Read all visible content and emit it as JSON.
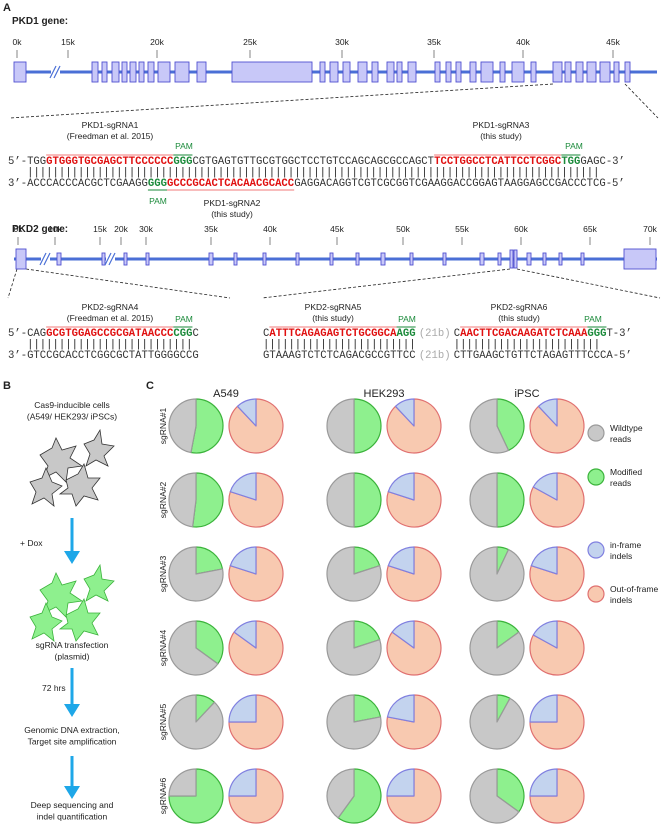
{
  "panel_labels": [
    "A",
    "B",
    "C"
  ],
  "pkd1": {
    "title": "PKD1 gene:",
    "axis_ticks": [
      "0k",
      "15k",
      "20k",
      "25k",
      "30k",
      "35k",
      "40k",
      "45k"
    ],
    "block": {
      "top": [
        {
          "text": "5’-TGG",
          "style": "plain"
        },
        {
          "text": "GTGGGTGCGAGCTTCCCCCC",
          "style": "sgrna"
        },
        {
          "text": "GGG",
          "style": "pam"
        },
        {
          "text": "CGTGAGTGTTGCGTGGCTCCTGTCCAGCAGCGCCAGCT",
          "style": "plain"
        },
        {
          "text": "TCCTGGCCTCATTCCTCGGC",
          "style": "sgrna"
        },
        {
          "text": "TGG",
          "style": "pam"
        },
        {
          "text": "GAGC-3’",
          "style": "plain"
        }
      ],
      "bars": [
        "||||||||||||||||||||||||||||||||||||||||||||||||||||||||||||||||||||||||||||||||||||||||||"
      ],
      "bottom": [
        {
          "text": "3’-ACCCACCCACGCTCGAAGG",
          "style": "plain"
        },
        {
          "text": "GGG",
          "style": "pam"
        },
        {
          "text": "GCCCGCACTCACAACGCACC",
          "style": "sgrna"
        },
        {
          "text": "GAGGACAGGTCGTCGCGGTCGAAGGACCGGAGTAAGGAGCCGACCCTCG-5’",
          "style": "plain"
        }
      ]
    },
    "sgrna1": [
      "PKD1-sgRNA1",
      "(Freedman et al. 2015)"
    ],
    "sgrna3": [
      "PKD1-sgRNA3",
      "(this study)"
    ],
    "sgrna2": [
      "PKD1-sgRNA2",
      "(this study)"
    ],
    "pam": "PAM"
  },
  "pkd2": {
    "title": "PKD2 gene:",
    "axis_ticks": [
      "0k",
      "10k",
      "15k",
      "20k",
      "30k",
      "35k",
      "40k",
      "45k",
      "50k",
      "55k",
      "60k",
      "65k",
      "70k"
    ],
    "left": {
      "top": [
        {
          "text": "5’-CAG",
          "style": "plain"
        },
        {
          "text": "GCGTGGAGCCGCGATAACCC",
          "style": "sgrna"
        },
        {
          "text": "CGG",
          "style": "pam"
        },
        {
          "text": "C",
          "style": "plain"
        }
      ],
      "bars": [
        "||||||||||||||||||||||||||"
      ],
      "bottom": [
        {
          "text": "3’-GTCCGCACCTCGGCGCTATTGGGGCCG",
          "style": "plain"
        }
      ]
    },
    "right": {
      "top": [
        {
          "text": "C",
          "style": "plain"
        },
        {
          "text": "ATTTCAGAGAGTCTGCGGCA",
          "style": "sgrna"
        },
        {
          "text": "AGG",
          "style": "pam"
        },
        {
          "text": "(21b)",
          "style": "gap"
        },
        {
          "text": "C",
          "style": "plain"
        },
        {
          "text": "AACTTCGACAAGATCTCAAA",
          "style": "sgrna"
        },
        {
          "text": "GGG",
          "style": "pam"
        },
        {
          "text": "T-3’",
          "style": "plain"
        }
      ],
      "bars": [
        "||||||||||||||||||||||||",
        "|||||||||||||||||||||||"
      ],
      "bottom": [
        {
          "text": "GTAAAGTCTCTCAGACGCCGTTCC",
          "style": "plain"
        },
        {
          "text": "(21b)",
          "style": "gap"
        },
        {
          "text": "CTTGAAGCTGTTCTAGAGTTTCCCA-5’",
          "style": "plain"
        }
      ]
    },
    "sgrna4": [
      "PKD2-sgRNA4",
      "(Freedman et al. 2015)"
    ],
    "sgrna5": [
      "PKD2-sgRNA5",
      "(this study)"
    ],
    "sgrna6": [
      "PKD2-sgRNA6",
      "(this study)"
    ],
    "pam": "PAM"
  },
  "panel_b": {
    "steps": [
      [
        "Cas9-inducible cells",
        "(A549/ HEK293/ iPSCs)"
      ],
      [
        "sgRNA transfection",
        "(plasmid)"
      ],
      [
        "Genomic DNA extraction,",
        "Target site amplification"
      ],
      [
        "Deep sequencing and",
        "indel quantification"
      ]
    ],
    "arrow_labels": [
      "+ Dox",
      "72 hrs"
    ]
  },
  "panel_c": {
    "columns": [
      "A549",
      "HEK293",
      "iPSC"
    ],
    "rows": [
      "sgRNA#1",
      "sgRNA#2",
      "sgRNA#3",
      "sgRNA#4",
      "sgRNA#5",
      "sgRNA#6"
    ],
    "legend": [
      {
        "name": [
          "Wildtype",
          "reads"
        ]
      },
      {
        "name": [
          "Modified",
          "reads"
        ]
      },
      {
        "name": [
          "in-frame",
          "indels"
        ]
      },
      {
        "name": [
          "Out-of-frame",
          "indels"
        ]
      }
    ]
  },
  "chart_data": [
    {
      "type": "pie",
      "values": [
        47,
        53
      ],
      "colors": [
        "#c8c8c8",
        "#8ef08e"
      ]
    },
    {
      "type": "pie",
      "values": [
        12,
        88
      ],
      "colors": [
        "#c3d3ee",
        "#f8c9b0"
      ]
    },
    {
      "type": "pie",
      "values": [
        50,
        50
      ],
      "colors": [
        "#c8c8c8",
        "#8ef08e"
      ]
    },
    {
      "type": "pie",
      "values": [
        12,
        88
      ],
      "colors": [
        "#c3d3ee",
        "#f8c9b0"
      ]
    },
    {
      "type": "pie",
      "values": [
        57,
        43
      ],
      "colors": [
        "#c8c8c8",
        "#8ef08e"
      ]
    },
    {
      "type": "pie",
      "values": [
        12,
        88
      ],
      "colors": [
        "#c3d3ee",
        "#f8c9b0"
      ]
    },
    {
      "type": "pie",
      "values": [
        48,
        52
      ],
      "colors": [
        "#c8c8c8",
        "#8ef08e"
      ]
    },
    {
      "type": "pie",
      "values": [
        20,
        80
      ],
      "colors": [
        "#c3d3ee",
        "#f8c9b0"
      ]
    },
    {
      "type": "pie",
      "values": [
        50,
        50
      ],
      "colors": [
        "#c8c8c8",
        "#8ef08e"
      ]
    },
    {
      "type": "pie",
      "values": [
        20,
        80
      ],
      "colors": [
        "#c3d3ee",
        "#f8c9b0"
      ]
    },
    {
      "type": "pie",
      "values": [
        50,
        50
      ],
      "colors": [
        "#c8c8c8",
        "#8ef08e"
      ]
    },
    {
      "type": "pie",
      "values": [
        17,
        83
      ],
      "colors": [
        "#c3d3ee",
        "#f8c9b0"
      ]
    },
    {
      "type": "pie",
      "values": [
        78,
        22
      ],
      "colors": [
        "#c8c8c8",
        "#8ef08e"
      ]
    },
    {
      "type": "pie",
      "values": [
        20,
        80
      ],
      "colors": [
        "#c3d3ee",
        "#f8c9b0"
      ]
    },
    {
      "type": "pie",
      "values": [
        80,
        20
      ],
      "colors": [
        "#c8c8c8",
        "#8ef08e"
      ]
    },
    {
      "type": "pie",
      "values": [
        20,
        80
      ],
      "colors": [
        "#c3d3ee",
        "#f8c9b0"
      ]
    },
    {
      "type": "pie",
      "values": [
        93,
        7
      ],
      "colors": [
        "#c8c8c8",
        "#8ef08e"
      ]
    },
    {
      "type": "pie",
      "values": [
        20,
        80
      ],
      "colors": [
        "#c3d3ee",
        "#f8c9b0"
      ]
    },
    {
      "type": "pie",
      "values": [
        65,
        35
      ],
      "colors": [
        "#c8c8c8",
        "#8ef08e"
      ]
    },
    {
      "type": "pie",
      "values": [
        15,
        85
      ],
      "colors": [
        "#c3d3ee",
        "#f8c9b0"
      ]
    },
    {
      "type": "pie",
      "values": [
        80,
        20
      ],
      "colors": [
        "#c8c8c8",
        "#8ef08e"
      ]
    },
    {
      "type": "pie",
      "values": [
        15,
        85
      ],
      "colors": [
        "#c3d3ee",
        "#f8c9b0"
      ]
    },
    {
      "type": "pie",
      "values": [
        85,
        15
      ],
      "colors": [
        "#c8c8c8",
        "#8ef08e"
      ]
    },
    {
      "type": "pie",
      "values": [
        17,
        83
      ],
      "colors": [
        "#c3d3ee",
        "#f8c9b0"
      ]
    },
    {
      "type": "pie",
      "values": [
        88,
        12
      ],
      "colors": [
        "#c8c8c8",
        "#8ef08e"
      ]
    },
    {
      "type": "pie",
      "values": [
        25,
        75
      ],
      "colors": [
        "#c3d3ee",
        "#f8c9b0"
      ]
    },
    {
      "type": "pie",
      "values": [
        78,
        22
      ],
      "colors": [
        "#c8c8c8",
        "#8ef08e"
      ]
    },
    {
      "type": "pie",
      "values": [
        22,
        78
      ],
      "colors": [
        "#c3d3ee",
        "#f8c9b0"
      ]
    },
    {
      "type": "pie",
      "values": [
        92,
        8
      ],
      "colors": [
        "#c8c8c8",
        "#8ef08e"
      ]
    },
    {
      "type": "pie",
      "values": [
        25,
        75
      ],
      "colors": [
        "#c3d3ee",
        "#f8c9b0"
      ]
    },
    {
      "type": "pie",
      "values": [
        25,
        75
      ],
      "colors": [
        "#c8c8c8",
        "#8ef08e"
      ]
    },
    {
      "type": "pie",
      "values": [
        25,
        75
      ],
      "colors": [
        "#c3d3ee",
        "#f8c9b0"
      ]
    },
    {
      "type": "pie",
      "values": [
        40,
        60
      ],
      "colors": [
        "#c8c8c8",
        "#8ef08e"
      ]
    },
    {
      "type": "pie",
      "values": [
        25,
        75
      ],
      "colors": [
        "#c3d3ee",
        "#f8c9b0"
      ]
    },
    {
      "type": "pie",
      "values": [
        65,
        35
      ],
      "colors": [
        "#c8c8c8",
        "#8ef08e"
      ]
    },
    {
      "type": "pie",
      "values": [
        25,
        75
      ],
      "colors": [
        "#c3d3ee",
        "#f8c9b0"
      ]
    }
  ]
}
